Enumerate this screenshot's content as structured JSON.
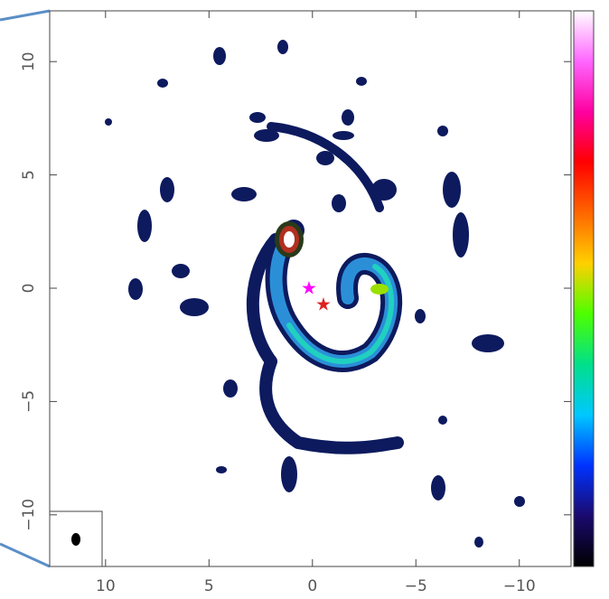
{
  "chart_data": {
    "type": "image",
    "xlim": [
      12.7,
      -12.5
    ],
    "ylim": [
      -12.28,
      12.24
    ],
    "xticks": [
      10,
      5,
      0,
      {
        "value": -5,
        "label": "−5"
      },
      {
        "value": -10,
        "label": "−10"
      }
    ],
    "yticks": [
      10,
      5,
      0,
      {
        "value": -5,
        "label": "−5"
      },
      {
        "value": -10,
        "label": "−10"
      }
    ],
    "colorbar": [
      "#000000",
      "#1a0a6e",
      "#0033ff",
      "#00c8ff",
      "#00e08a",
      "#4dff00",
      "#ffd000",
      "#ff6600",
      "#ff0000",
      "#ff00a0",
      "#ff66ff",
      "#ffffff"
    ]
  }
}
